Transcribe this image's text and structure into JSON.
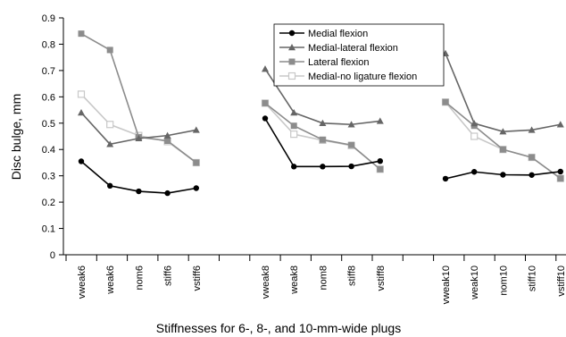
{
  "chart_data": {
    "type": "line",
    "title": "",
    "xlabel": "Stiffnesses for 6-, 8-, and 10-mm-wide plugs",
    "ylabel": "Disc bulge, mm",
    "ylim": [
      0,
      0.9
    ],
    "yticks": [
      0,
      0.1,
      0.2,
      0.3,
      0.4,
      0.5,
      0.6,
      0.7,
      0.8,
      0.9
    ],
    "ytick_labels": [
      "0",
      "0.1",
      "0.2",
      "0.3",
      "0.4",
      "0.5",
      "0.6",
      "0.7",
      "0.8",
      "0.9"
    ],
    "grid": false,
    "legend_position": "top-center",
    "groups": [
      {
        "categories": [
          "vweak6",
          "weak6",
          "nom6",
          "stiff6",
          "vstiff6"
        ]
      },
      {
        "categories": [
          "vweak8",
          "weak8",
          "nom8",
          "stiff8",
          "vstiff8"
        ]
      },
      {
        "categories": [
          "vweak10",
          "weak10",
          "nom10",
          "stiff10",
          "vstiff10"
        ]
      }
    ],
    "series": [
      {
        "name": "Medial flexion",
        "color": "#000000",
        "marker": "circle-filled",
        "groups": [
          [
            0.355,
            0.262,
            0.241,
            0.234,
            0.253
          ],
          [
            0.518,
            0.335,
            0.335,
            0.336,
            0.356
          ],
          [
            0.289,
            0.315,
            0.304,
            0.303,
            0.316
          ]
        ]
      },
      {
        "name": "Medial-lateral flexion",
        "color": "#666666",
        "marker": "triangle-filled",
        "groups": [
          [
            0.54,
            0.42,
            0.442,
            0.453,
            0.474
          ],
          [
            0.706,
            0.54,
            0.5,
            0.495,
            0.508
          ],
          [
            0.765,
            0.499,
            0.468,
            0.474,
            0.495
          ]
        ]
      },
      {
        "name": "Lateral flexion",
        "color": "#8c8c8c",
        "marker": "square-filled",
        "groups": [
          [
            0.84,
            0.778,
            0.447,
            0.433,
            0.35
          ],
          [
            0.576,
            0.49,
            0.437,
            0.417,
            0.325
          ],
          [
            0.58,
            0.49,
            0.4,
            0.37,
            0.29
          ]
        ]
      },
      {
        "name": "Medial-no ligature flexion",
        "color": "#c8c8c8",
        "marker": "square-open",
        "groups": [
          [
            0.61,
            0.495,
            0.453,
            0.43,
            0.35
          ],
          [
            0.576,
            0.458,
            0.435,
            0.415,
            0.325
          ],
          [
            0.58,
            0.45,
            0.4,
            0.37,
            0.29
          ]
        ]
      }
    ]
  }
}
